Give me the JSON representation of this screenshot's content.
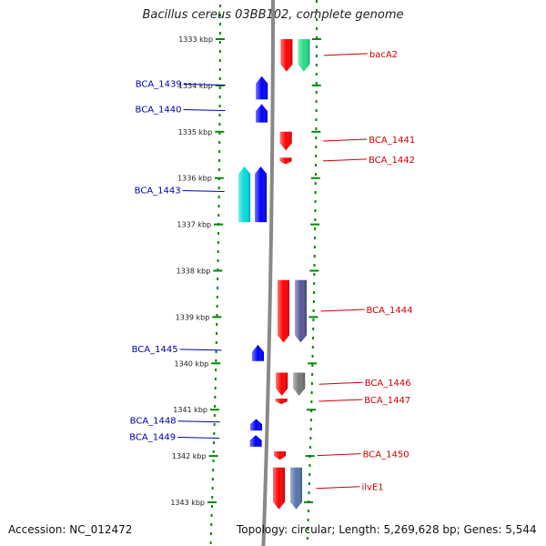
{
  "title": "Bacillus cereus 03BB102, complete genome",
  "accession": "Accession: NC_012472",
  "summary": "Topology: circular; Length: 5,269,628 bp; Genes: 5,544",
  "colors": {
    "forward": "#ff0000",
    "reverse": "#0000ff",
    "label_forward": "#cc0000",
    "label_reverse": "#0000aa",
    "axis": "#008800",
    "backbone": "#888888"
  },
  "scale": {
    "unit": "kbp",
    "ticks": [
      {
        "label": "1333 kbp"
      },
      {
        "label": "1334 kbp"
      },
      {
        "label": "1335 kbp"
      },
      {
        "label": "1336 kbp"
      },
      {
        "label": "1337 kbp"
      },
      {
        "label": "1338 kbp"
      },
      {
        "label": "1339 kbp"
      },
      {
        "label": "1340 kbp"
      },
      {
        "label": "1341 kbp"
      },
      {
        "label": "1342 kbp"
      },
      {
        "label": "1343 kbp"
      }
    ]
  },
  "features": {
    "forward": [
      {
        "name": "bacA2",
        "start": 1333.0,
        "end": 1333.7,
        "color": "#ff0000"
      },
      {
        "name": "BCA_1441",
        "start": 1335.0,
        "end": 1335.4,
        "color": "#ff0000"
      },
      {
        "name": "BCA_1442",
        "start": 1335.56,
        "end": 1335.7,
        "color": "#ff0000"
      },
      {
        "name": "BCA_1444",
        "start": 1338.2,
        "end": 1339.55,
        "color": "#ff0000"
      },
      {
        "name": "BCA_1446",
        "start": 1340.2,
        "end": 1340.7,
        "color": "#ff0000"
      },
      {
        "name": "BCA_1447",
        "start": 1340.76,
        "end": 1340.86,
        "color": "#ff0000"
      },
      {
        "name": "BCA_1450",
        "start": 1341.9,
        "end": 1342.08,
        "color": "#ff0000"
      },
      {
        "name": "ilvE1",
        "start": 1342.25,
        "end": 1343.15,
        "color": "#ff0000"
      }
    ],
    "reverse": [
      {
        "name": "BCA_1439",
        "start": 1333.8,
        "end": 1334.3,
        "color": "#0000ff"
      },
      {
        "name": "BCA_1440",
        "start": 1334.4,
        "end": 1334.8,
        "color": "#0000ff"
      },
      {
        "name": "BCA_1443",
        "start": 1335.75,
        "end": 1336.95,
        "color": "#0000ff"
      },
      {
        "name": "BCA_1445",
        "start": 1339.6,
        "end": 1339.95,
        "color": "#0000ff"
      },
      {
        "name": "BCA_1448",
        "start": 1341.2,
        "end": 1341.45,
        "color": "#0000ff"
      },
      {
        "name": "BCA_1449",
        "start": 1341.55,
        "end": 1341.8,
        "color": "#0000ff"
      }
    ],
    "other_forward": [
      {
        "start": 1333.0,
        "end": 1333.7,
        "color": "#22dd88"
      },
      {
        "start": 1338.2,
        "end": 1339.55,
        "color": "#555599"
      },
      {
        "start": 1340.2,
        "end": 1340.7,
        "color": "#777777"
      },
      {
        "start": 1342.25,
        "end": 1343.15,
        "color": "#5577aa"
      }
    ],
    "other_reverse": [
      {
        "start": 1335.75,
        "end": 1336.95,
        "color": "#00dddd"
      }
    ]
  }
}
